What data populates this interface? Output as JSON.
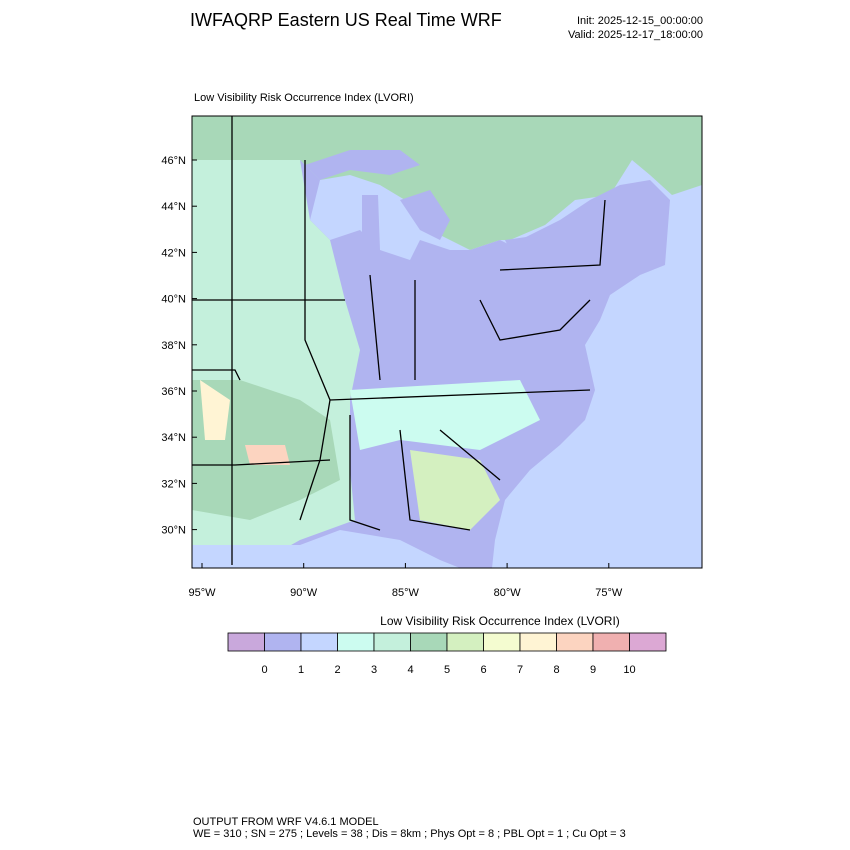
{
  "header": {
    "title": "IWFAQRP Eastern US Real Time WRF",
    "init": "Init: 2025-12-15_00:00:00",
    "valid": "Valid: 2025-12-17_18:00:00"
  },
  "map": {
    "title": "Low Visibility Risk Occurrence Index   (LVORI)",
    "lat_labels": [
      "46°N",
      "44°N",
      "42°N",
      "40°N",
      "38°N",
      "36°N",
      "34°N",
      "32°N",
      "30°N"
    ],
    "lon_labels": [
      "95°W",
      "90°W",
      "85°W",
      "80°W",
      "75°W"
    ]
  },
  "colorbar": {
    "title": "Low Visibility Risk Occurrence Index  (LVORI)",
    "labels": [
      "0",
      "1",
      "2",
      "3",
      "4",
      "5",
      "6",
      "7",
      "8",
      "9",
      "10"
    ],
    "colors": [
      "#c9a8dc",
      "#b0b4f0",
      "#c4d6ff",
      "#ccfcf0",
      "#c4f0dc",
      "#a8d8b8",
      "#d4f0c0",
      "#f4fcd0",
      "#fff4d4",
      "#fcd4c0",
      "#f0b0b0",
      "#dca8d4"
    ]
  },
  "footer": {
    "line1": "OUTPUT FROM WRF V4.6.1 MODEL",
    "line2": "WE = 310 ; SN = 275 ; Levels = 38 ; Dis = 8km ; Phys Opt = 8 ; PBL Opt = 1 ; Cu Opt = 3"
  }
}
